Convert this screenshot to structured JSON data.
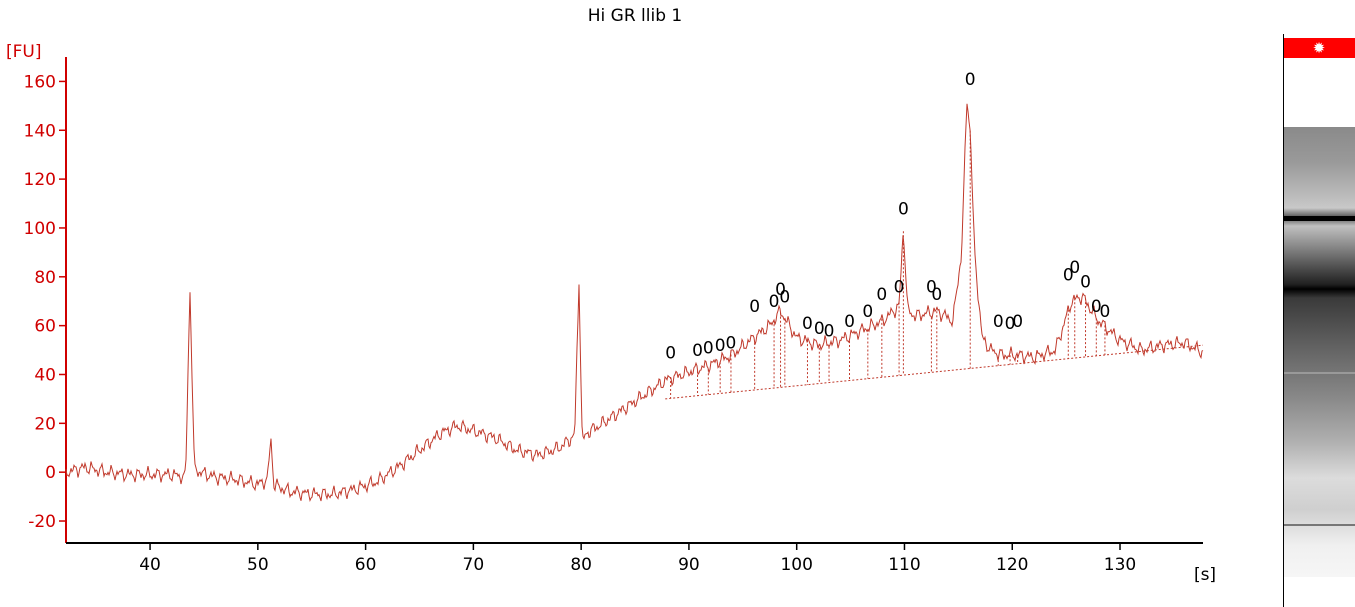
{
  "chart_data": {
    "type": "line",
    "title": "Hi GR llib 1",
    "xlabel": "[s]",
    "ylabel": "[FU]",
    "xlim": [
      32.2,
      137.7
    ],
    "ylim": [
      -29,
      170
    ],
    "xticks": [
      40,
      50,
      60,
      70,
      80,
      90,
      100,
      110,
      120,
      130
    ],
    "yticks": [
      -20,
      0,
      20,
      40,
      60,
      80,
      100,
      120,
      140,
      160
    ],
    "grid": false,
    "line_color": "#c0392b",
    "axis_color": "#d00000",
    "series": [
      {
        "x": [
          32.2,
          34,
          36,
          38,
          40,
          42,
          43.3,
          43.7,
          44.1,
          44.6,
          46,
          48,
          50,
          50.9,
          51.2,
          51.5,
          51.9,
          53,
          55,
          57,
          59,
          61,
          63,
          65,
          67,
          68.5,
          70,
          72,
          74,
          76,
          78,
          79.4,
          79.8,
          80.1,
          80.5,
          82,
          84,
          86,
          88,
          90,
          92,
          94,
          96,
          97.5,
          98.5,
          100,
          102,
          104,
          106,
          108,
          109.5,
          109.9,
          110.3,
          111,
          113,
          114.5,
          115.3,
          115.8,
          116.1,
          116.5,
          117.2,
          118,
          119,
          120.5,
          122,
          124,
          125.5,
          126.5,
          128,
          130,
          132,
          134,
          136,
          137.7
        ],
        "y": [
          0,
          2,
          0,
          -1,
          -1,
          -1,
          -2,
          76,
          2,
          0,
          -2,
          -3,
          -5,
          -3,
          14,
          -5,
          -6,
          -8,
          -9,
          -9,
          -7,
          -4,
          2,
          9,
          16,
          19,
          17,
          14,
          9,
          7,
          10,
          15,
          79,
          12,
          16,
          20,
          26,
          32,
          38,
          41,
          44,
          48,
          55,
          60,
          66,
          55,
          52,
          54,
          58,
          62,
          68,
          100,
          66,
          64,
          66,
          62,
          90,
          153,
          140,
          90,
          55,
          50,
          48,
          48,
          47,
          50,
          70,
          72,
          62,
          54,
          50,
          52,
          53,
          49
        ]
      }
    ],
    "peak_labels_x": [
      88.3,
      90.8,
      91.8,
      92.9,
      93.9,
      96.1,
      97.9,
      98.5,
      98.9,
      101.0,
      102.1,
      103.0,
      104.9,
      106.6,
      107.9,
      109.5,
      109.9,
      112.5,
      113.0,
      116.1,
      118.7,
      119.8,
      120.5,
      125.2,
      125.8,
      126.8,
      127.8,
      128.6
    ],
    "peak_labels_y": [
      49,
      50,
      51,
      52,
      53,
      68,
      70,
      75,
      72,
      61,
      59,
      58,
      62,
      66,
      73,
      76,
      108,
      76,
      73,
      161,
      62,
      61,
      62,
      81,
      84,
      78,
      68,
      66
    ],
    "fit_baseline_x": [
      87.8,
      137.7
    ],
    "fit_baseline_y": [
      30,
      52
    ],
    "peak_label_symbol": "0"
  },
  "gel": {
    "marker_color": "#ff0000",
    "marker_symbol": "✹"
  }
}
